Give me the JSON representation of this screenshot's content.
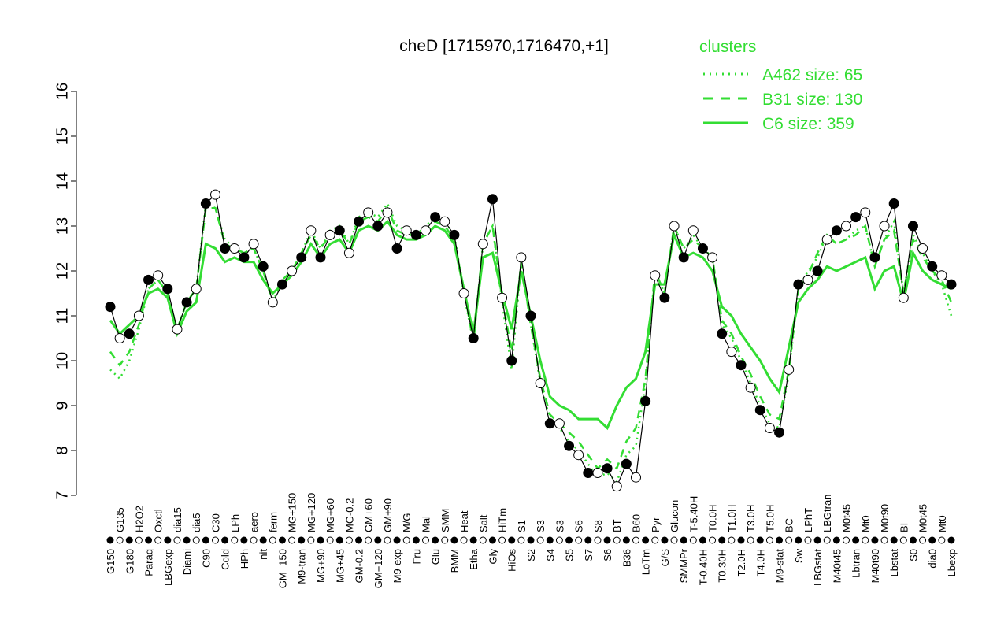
{
  "chart_data": {
    "type": "line",
    "title": "cheD [1715970,1716470,+1]",
    "xlabel": "",
    "ylabel": "",
    "ylim": [
      7,
      16
    ],
    "yticks": [
      7,
      8,
      9,
      10,
      11,
      12,
      13,
      14,
      15,
      16
    ],
    "grid": false,
    "legend": {
      "title": "clusters",
      "placement": "top-right",
      "color": "#33dd33"
    },
    "categories": [
      "G150",
      "G135",
      "G180",
      "H2O2",
      "Paraq",
      "Oxctl",
      "LBGexp",
      "dia15",
      "Diami",
      "dia5",
      "C90",
      "C30",
      "Cold",
      "LPh",
      "HPh",
      "aero",
      "nit",
      "ferm",
      "GM+150",
      "MG+150",
      "M9-tran",
      "MG+120",
      "MG+90",
      "MG+60",
      "MG+45",
      "MG-0.2",
      "GM-0.2",
      "GM+60",
      "GM+120",
      "GM+90",
      "M9-exp",
      "M/G",
      "Fru",
      "Mal",
      "Glu",
      "SMM",
      "BMM",
      "Heat",
      "Etha",
      "Salt",
      "Gly",
      "HiTm",
      "HiOs",
      "S1",
      "S2",
      "S3",
      "S4",
      "S3",
      "S5",
      "S6",
      "S7",
      "S8",
      "S6",
      "BT",
      "B36",
      "B60",
      "LoTm",
      "Pyr",
      "G/S",
      "Glucon",
      "SMMPr",
      "T-5.40H",
      "T-0.40H",
      "T0.0H",
      "T0.30H",
      "T1.0H",
      "T2.0H",
      "T3.0H",
      "T4.0H",
      "T5.0H",
      "M9-stat",
      "BC",
      "Sw",
      "LPhT",
      "LBGstat",
      "LBGtran",
      "M40t45",
      "M0t45",
      "Lbtran",
      "Mt0",
      "M40t90",
      "M0t90",
      "Lbstat",
      "BI",
      "S0",
      "M0t45",
      "dia0",
      "Mt0",
      "Lbexp"
    ],
    "values": [
      11.2,
      10.5,
      10.6,
      11.0,
      11.8,
      11.9,
      11.6,
      10.7,
      11.3,
      11.6,
      13.5,
      13.7,
      12.5,
      12.5,
      12.3,
      12.6,
      12.1,
      11.3,
      11.7,
      12.0,
      12.3,
      12.9,
      12.3,
      12.8,
      12.9,
      12.4,
      13.1,
      13.3,
      13.0,
      13.3,
      12.5,
      12.9,
      12.8,
      12.9,
      13.2,
      13.1,
      12.8,
      11.5,
      10.5,
      12.6,
      13.6,
      11.4,
      10.0,
      12.3,
      11.0,
      9.5,
      8.6,
      8.6,
      8.1,
      7.9,
      7.5,
      7.5,
      7.6,
      7.2,
      7.7,
      7.4,
      9.1,
      11.9,
      11.4,
      13.0,
      12.3,
      12.9,
      12.5,
      12.3,
      10.6,
      10.2,
      9.9,
      9.4,
      8.9,
      8.5,
      8.4,
      9.8,
      11.7,
      11.8,
      12.0,
      12.7,
      12.9,
      13.0,
      13.2,
      13.3,
      12.3,
      13.0,
      13.5,
      11.4,
      13.0,
      12.5,
      12.1,
      11.9,
      11.7
    ],
    "series": [
      {
        "name": "A462 size: 65",
        "style": "dotted",
        "color": "#33dd33",
        "values": [
          9.8,
          9.6,
          10.0,
          10.7,
          11.6,
          11.8,
          11.5,
          10.7,
          11.3,
          11.6,
          13.5,
          13.4,
          12.7,
          12.5,
          12.4,
          12.5,
          12.0,
          11.3,
          11.8,
          12.0,
          12.4,
          12.9,
          12.5,
          12.9,
          13.0,
          12.6,
          13.2,
          13.3,
          13.2,
          13.5,
          13.0,
          12.9,
          12.8,
          13.0,
          13.2,
          13.1,
          12.8,
          11.5,
          10.4,
          12.6,
          13.0,
          11.3,
          9.8,
          12.2,
          10.8,
          9.5,
          8.7,
          8.5,
          8.2,
          8.0,
          7.7,
          7.4,
          7.5,
          7.3,
          7.9,
          8.1,
          9.5,
          12.0,
          11.5,
          13.0,
          12.5,
          12.8,
          12.5,
          12.3,
          10.8,
          10.5,
          10.0,
          9.5,
          9.0,
          8.6,
          8.5,
          9.7,
          11.6,
          12.0,
          12.3,
          12.8,
          12.6,
          12.7,
          12.9,
          13.0,
          12.1,
          12.7,
          13.1,
          11.5,
          12.8,
          12.4,
          12.0,
          11.7,
          11.0
        ]
      },
      {
        "name": "B31 size: 130",
        "style": "dashed",
        "color": "#33dd33",
        "values": [
          10.2,
          9.9,
          10.2,
          10.8,
          11.6,
          11.8,
          11.5,
          10.7,
          11.3,
          11.6,
          13.4,
          13.4,
          12.6,
          12.5,
          12.4,
          12.5,
          12.0,
          11.3,
          11.8,
          12.0,
          12.4,
          12.8,
          12.5,
          12.8,
          12.9,
          12.6,
          13.1,
          13.2,
          13.1,
          13.4,
          12.9,
          12.8,
          12.8,
          12.9,
          13.1,
          13.0,
          12.7,
          11.6,
          10.4,
          12.6,
          13.0,
          11.4,
          10.2,
          12.2,
          10.8,
          9.6,
          8.8,
          8.6,
          8.4,
          8.2,
          7.9,
          7.6,
          7.8,
          7.6,
          8.2,
          8.5,
          9.6,
          12.0,
          11.5,
          13.0,
          12.5,
          12.7,
          12.5,
          12.3,
          10.9,
          10.6,
          10.1,
          9.7,
          9.2,
          8.8,
          8.7,
          9.8,
          11.6,
          11.9,
          12.4,
          12.8,
          12.6,
          12.7,
          12.8,
          13.0,
          12.1,
          12.7,
          12.9,
          11.5,
          12.7,
          12.3,
          12.0,
          11.8,
          11.3
        ]
      },
      {
        "name": "C6 size: 359",
        "style": "solid",
        "color": "#33dd33",
        "values": [
          10.9,
          10.6,
          10.8,
          11.0,
          11.5,
          11.6,
          11.4,
          10.6,
          11.1,
          11.3,
          12.6,
          12.5,
          12.2,
          12.3,
          12.2,
          12.2,
          11.8,
          11.5,
          11.7,
          11.9,
          12.2,
          12.6,
          12.3,
          12.6,
          12.7,
          12.4,
          12.9,
          13.0,
          12.9,
          13.1,
          12.8,
          12.7,
          12.7,
          12.8,
          13.0,
          12.9,
          12.6,
          11.6,
          10.6,
          12.3,
          12.4,
          11.5,
          10.7,
          12.0,
          11.0,
          10.0,
          9.2,
          9.0,
          8.9,
          8.7,
          8.7,
          8.7,
          8.5,
          9.0,
          9.4,
          9.6,
          10.2,
          11.7,
          11.7,
          12.8,
          12.3,
          12.4,
          12.3,
          12.0,
          11.2,
          11.0,
          10.6,
          10.3,
          10.0,
          9.6,
          9.3,
          10.3,
          11.3,
          11.6,
          11.8,
          12.1,
          12.0,
          12.1,
          12.2,
          12.3,
          11.6,
          12.0,
          12.1,
          11.3,
          12.4,
          12.0,
          11.8,
          11.7,
          11.6
        ]
      }
    ]
  }
}
